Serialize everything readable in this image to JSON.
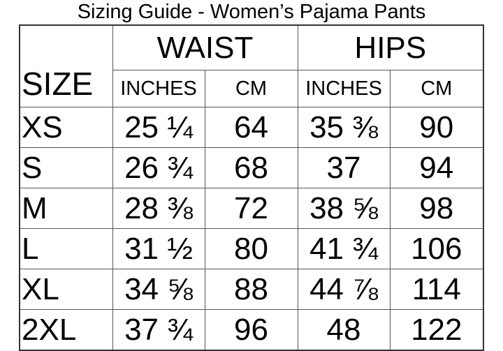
{
  "title": "Sizing Guide - Women’s Pajama Pants",
  "table": {
    "size_header": "SIZE",
    "groups": [
      "WAIST",
      "HIPS"
    ],
    "subheaders": [
      "INCHES",
      "CM",
      "INCHES",
      "CM"
    ],
    "rows": [
      {
        "size": "XS",
        "waist_in": "25 ¼",
        "waist_cm": "64",
        "hips_in": "35 ⅜",
        "hips_cm": "90"
      },
      {
        "size": "S",
        "waist_in": "26 ¾",
        "waist_cm": "68",
        "hips_in": "37",
        "hips_cm": "94"
      },
      {
        "size": "M",
        "waist_in": "28 ⅜",
        "waist_cm": "72",
        "hips_in": "38 ⅝",
        "hips_cm": "98"
      },
      {
        "size": "L",
        "waist_in": "31 ½",
        "waist_cm": "80",
        "hips_in": "41 ¾",
        "hips_cm": "106"
      },
      {
        "size": "XL",
        "waist_in": "34 ⅝",
        "waist_cm": "88",
        "hips_in": "44 ⅞",
        "hips_cm": "114"
      },
      {
        "size": "2XL",
        "waist_in": "37 ¾",
        "waist_cm": "96",
        "hips_in": "48",
        "hips_cm": "122"
      }
    ]
  }
}
